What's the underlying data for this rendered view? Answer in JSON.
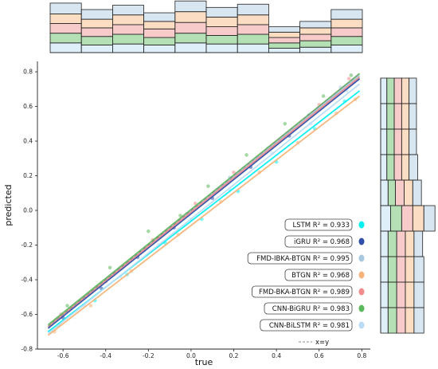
{
  "chart_data": {
    "type": "scatter",
    "title": "",
    "xlabel": "true",
    "ylabel": "predicted",
    "xlim": [
      -0.72,
      0.84
    ],
    "ylim": [
      -0.8,
      0.86
    ],
    "xticks": [
      "-0.6",
      "-0.4",
      "-0.2",
      "0.0",
      "0.2",
      "0.4",
      "0.6",
      "0.8"
    ],
    "yticks": [
      "-0.8",
      "-0.6",
      "-0.4",
      "-0.2",
      "0.0",
      "0.2",
      "0.4",
      "0.6",
      "0.8"
    ],
    "xtick_values": [
      -0.6,
      -0.4,
      -0.2,
      0.0,
      0.2,
      0.4,
      0.6,
      0.8
    ],
    "ytick_values": [
      -0.8,
      -0.6,
      -0.4,
      -0.2,
      0.0,
      0.2,
      0.4,
      0.6,
      0.8
    ],
    "grid": false,
    "legend_position": "bottom-right",
    "reference_line": {
      "label": "x=y",
      "style": "dashed",
      "color": "#888888"
    },
    "series": [
      {
        "name": "LSTM",
        "r2_label": "LSTM R² = 0.933",
        "color": "#00f0f0",
        "fit": {
          "x": [
            -0.67,
            0.79
          ],
          "y": [
            -0.7,
            0.69
          ]
        },
        "points": [
          [
            -0.62,
            -0.66
          ],
          [
            -0.45,
            -0.52
          ],
          [
            -0.3,
            -0.37
          ],
          [
            -0.12,
            -0.19
          ],
          [
            0.05,
            -0.05
          ],
          [
            0.22,
            0.11
          ],
          [
            0.4,
            0.28
          ],
          [
            0.58,
            0.47
          ],
          [
            0.72,
            0.63
          ]
        ]
      },
      {
        "name": "iGRU",
        "r2_label": "iGRU R² = 0.968",
        "color": "#2f4fa8",
        "fit": {
          "x": [
            -0.67,
            0.79
          ],
          "y": [
            -0.68,
            0.76
          ]
        },
        "points": [
          [
            -0.6,
            -0.62
          ],
          [
            -0.42,
            -0.45
          ],
          [
            -0.25,
            -0.27
          ],
          [
            -0.08,
            -0.1
          ],
          [
            0.1,
            0.07
          ],
          [
            0.28,
            0.25
          ],
          [
            0.46,
            0.43
          ],
          [
            0.64,
            0.62
          ],
          [
            0.76,
            0.74
          ]
        ]
      },
      {
        "name": "FMD-IBKA-BTGN",
        "r2_label": "FMD-IBKA-BTGN R² = 0.995",
        "color": "#a8c8e0",
        "fit": {
          "x": [
            -0.67,
            0.79
          ],
          "y": [
            -0.67,
            0.78
          ]
        },
        "points": [
          [
            -0.63,
            -0.63
          ],
          [
            -0.44,
            -0.44
          ],
          [
            -0.22,
            -0.23
          ],
          [
            -0.02,
            -0.02
          ],
          [
            0.18,
            0.19
          ],
          [
            0.36,
            0.36
          ],
          [
            0.55,
            0.55
          ],
          [
            0.7,
            0.71
          ]
        ]
      },
      {
        "name": "BTGN",
        "r2_label": "BTGN R² = 0.968",
        "color": "#f5b37a",
        "fit": {
          "x": [
            -0.67,
            0.79
          ],
          "y": [
            -0.72,
            0.66
          ]
        },
        "points": [
          [
            -0.64,
            -0.7
          ],
          [
            -0.47,
            -0.55
          ],
          [
            -0.28,
            -0.35
          ],
          [
            -0.06,
            -0.14
          ],
          [
            0.14,
            0.05
          ],
          [
            0.32,
            0.22
          ],
          [
            0.5,
            0.39
          ],
          [
            0.68,
            0.56
          ],
          [
            0.77,
            0.64
          ]
        ]
      },
      {
        "name": "FMD-BKA-BTGN",
        "r2_label": "FMD-BKA-BTGN R² = 0.989",
        "color": "#f08c8c",
        "fit": {
          "x": [
            -0.67,
            0.79
          ],
          "y": [
            -0.67,
            0.77
          ]
        },
        "points": [
          [
            -0.61,
            -0.6
          ],
          [
            -0.4,
            -0.41
          ],
          [
            -0.18,
            -0.17
          ],
          [
            0.02,
            0.04
          ],
          [
            0.2,
            0.22
          ],
          [
            0.42,
            0.41
          ],
          [
            0.6,
            0.61
          ],
          [
            0.74,
            0.76
          ]
        ]
      },
      {
        "name": "CNN-BiGRU",
        "r2_label": "CNN-BiGRU R² = 0.983",
        "color": "#5cb85c",
        "fit": {
          "x": [
            -0.67,
            0.79
          ],
          "y": [
            -0.66,
            0.79
          ]
        },
        "points": [
          [
            -0.58,
            -0.55
          ],
          [
            -0.38,
            -0.33
          ],
          [
            -0.2,
            -0.12
          ],
          [
            -0.05,
            -0.03
          ],
          [
            0.08,
            0.14
          ],
          [
            0.26,
            0.32
          ],
          [
            0.44,
            0.5
          ],
          [
            0.62,
            0.66
          ],
          [
            0.75,
            0.78
          ]
        ]
      },
      {
        "name": "CNN-BiLSTM",
        "r2_label": "CNN-BiLSTM R² = 0.981",
        "color": "#b8dcf5",
        "fit": {
          "x": [
            -0.67,
            0.79
          ],
          "y": [
            -0.71,
            0.73
          ]
        },
        "points": [
          [
            -0.65,
            -0.69
          ],
          [
            -0.5,
            -0.55
          ],
          [
            -0.33,
            -0.38
          ],
          [
            -0.15,
            -0.2
          ],
          [
            0.0,
            -0.05
          ],
          [
            0.18,
            0.12
          ],
          [
            0.38,
            0.33
          ],
          [
            0.56,
            0.5
          ],
          [
            0.73,
            0.69
          ]
        ]
      }
    ],
    "top_histogram": {
      "bins": 10,
      "stack_colors": [
        "#b8dcf5",
        "#5cb85c",
        "#f08c8c",
        "#f5b37a",
        "#a8c8e0"
      ],
      "counts": [
        [
          9,
          9,
          9,
          9,
          10
        ],
        [
          7,
          8,
          8,
          8,
          9
        ],
        [
          8,
          9,
          9,
          9,
          9
        ],
        [
          7,
          7,
          8,
          7,
          8
        ],
        [
          9,
          9,
          10,
          10,
          10
        ],
        [
          8,
          8,
          8,
          9,
          9
        ],
        [
          8,
          9,
          9,
          9,
          10
        ],
        [
          4,
          5,
          5,
          5,
          5
        ],
        [
          5,
          6,
          6,
          6,
          6
        ],
        [
          7,
          8,
          8,
          8,
          9
        ]
      ]
    },
    "right_histogram": {
      "bins": 10,
      "stack_colors": [
        "#b8dcf5",
        "#5cb85c",
        "#f08c8c",
        "#f5b37a",
        "#a8c8e0"
      ],
      "counts": [
        [
          5,
          6,
          6,
          6,
          6
        ],
        [
          5,
          6,
          6,
          6,
          6
        ],
        [
          5,
          6,
          6,
          6,
          6
        ],
        [
          5,
          6,
          6,
          6,
          7
        ],
        [
          6,
          6,
          7,
          7,
          7
        ],
        [
          8,
          9,
          9,
          9,
          9
        ],
        [
          6,
          7,
          7,
          7,
          7
        ],
        [
          6,
          7,
          7,
          7,
          8
        ],
        [
          6,
          7,
          7,
          7,
          8
        ],
        [
          6,
          7,
          7,
          7,
          8
        ]
      ]
    },
    "legend": [
      {
        "label_bind": "LSTM R² = 0.933",
        "color": "#00f0f0"
      },
      {
        "label_bind": "iGRU R² = 0.968",
        "color": "#2f4fa8"
      },
      {
        "label_bind": "FMD-IBKA-BTGN R² = 0.995",
        "color": "#a8c8e0"
      },
      {
        "label_bind": "BTGN R² = 0.968",
        "color": "#f5b37a"
      },
      {
        "label_bind": "FMD-BKA-BTGN R² = 0.989",
        "color": "#f08c8c"
      },
      {
        "label_bind": "CNN-BiGRU R² = 0.983",
        "color": "#5cb85c"
      },
      {
        "label_bind": "CNN-BiLSTM R² = 0.981",
        "color": "#b8dcf5"
      }
    ],
    "legend_reference_label": "x=y"
  }
}
